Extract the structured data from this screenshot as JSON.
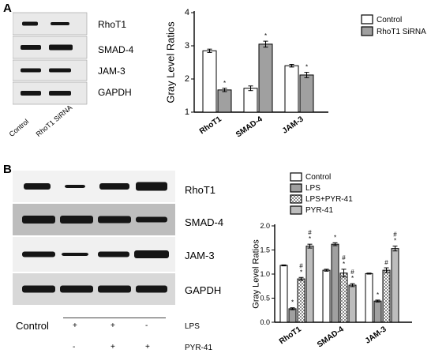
{
  "panel_a": {
    "letter": "A",
    "blot_rows": [
      "RhoT1",
      "SMAD-4",
      "JAM-3",
      "GAPDH"
    ],
    "lanes": [
      "Control",
      "RhoT1 SiRNA"
    ]
  },
  "panel_b": {
    "letter": "B",
    "blot_rows": [
      "RhoT1",
      "SMAD-4",
      "JAM-3",
      "GAPDH"
    ],
    "control_label": "Control",
    "conditions": [
      {
        "name": "LPS",
        "marks": [
          "+",
          "+",
          "-"
        ]
      },
      {
        "name": "PYR-41",
        "marks": [
          "-",
          "+",
          "+"
        ]
      }
    ]
  },
  "colors": {
    "control": "#ffffff",
    "sirna": "#a0a0a0",
    "lps": "#a0a0a0",
    "lps_pyr": "#d4d4d4",
    "pyr": "#bdbdbd",
    "stroke": "#000000",
    "blot_band": "#151515"
  },
  "chart_data": [
    {
      "type": "bar",
      "title": "",
      "ylabel": "Gray Level Ratios",
      "xlabel": "",
      "categories": [
        "RhoT1",
        "SMAD-4",
        "JAM-3"
      ],
      "ylim": [
        1,
        4
      ],
      "yticks": [
        "1",
        "2",
        "3",
        "4"
      ],
      "legend": "top-right",
      "grid": false,
      "series": [
        {
          "name": "Control",
          "values": [
            2.85,
            1.72,
            2.4
          ],
          "errors": [
            0.05,
            0.07,
            0.04
          ],
          "annotations": [
            "",
            "",
            ""
          ]
        },
        {
          "name": "RhoT1 SiRNA",
          "values": [
            1.67,
            3.05,
            2.12
          ],
          "errors": [
            0.05,
            0.09,
            0.08
          ],
          "annotations": [
            "*",
            "*",
            "*"
          ]
        }
      ]
    },
    {
      "type": "bar",
      "title": "",
      "ylabel": "Gray Level Ratios",
      "xlabel": "",
      "categories": [
        "RhoT1",
        "SMAD-4",
        "JAM-3"
      ],
      "ylim": [
        0,
        2.0
      ],
      "yticks": [
        "0.0",
        "0.5",
        "1.0",
        "1.5",
        "2.0"
      ],
      "legend": "top-right",
      "grid": false,
      "series": [
        {
          "name": "Control",
          "values": [
            1.18,
            1.08,
            1.01
          ],
          "errors": [
            0.01,
            0.02,
            0.01
          ],
          "annotations": [
            "",
            "",
            ""
          ]
        },
        {
          "name": "LPS",
          "values": [
            0.28,
            1.62,
            0.44
          ],
          "errors": [
            0.02,
            0.03,
            0.02
          ],
          "annotations": [
            "*",
            "*",
            "*"
          ]
        },
        {
          "name": "LPS+PYR-41",
          "values": [
            0.9,
            1.02,
            1.08
          ],
          "errors": [
            0.03,
            0.08,
            0.05
          ],
          "annotations": [
            "#\n*",
            "#\n*",
            "#"
          ]
        },
        {
          "name": "PYR-41",
          "values": [
            1.58,
            0.77,
            1.53
          ],
          "errors": [
            0.04,
            0.03,
            0.05
          ],
          "annotations": [
            "#\n*",
            "#\n*",
            "#\n*"
          ]
        }
      ]
    }
  ]
}
